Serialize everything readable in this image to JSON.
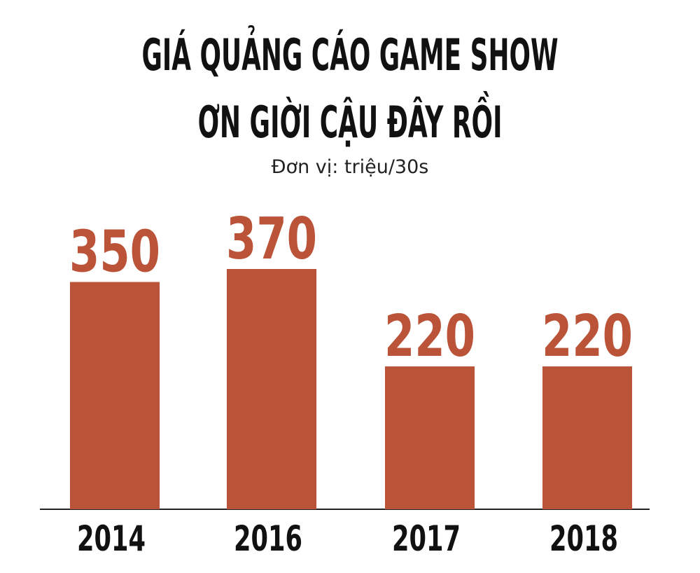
{
  "chart_data": {
    "type": "bar",
    "title": [
      "GIÁ QUẢNG CÁO GAME SHOW",
      "ƠN GIỜI CẬU ĐÂY RỒI"
    ],
    "subtitle": "Đơn vị: triệu/30s",
    "categories": [
      "2014",
      "2016",
      "2017",
      "2018"
    ],
    "values": [
      350,
      370,
      220,
      220
    ],
    "color": "#bb5338"
  }
}
